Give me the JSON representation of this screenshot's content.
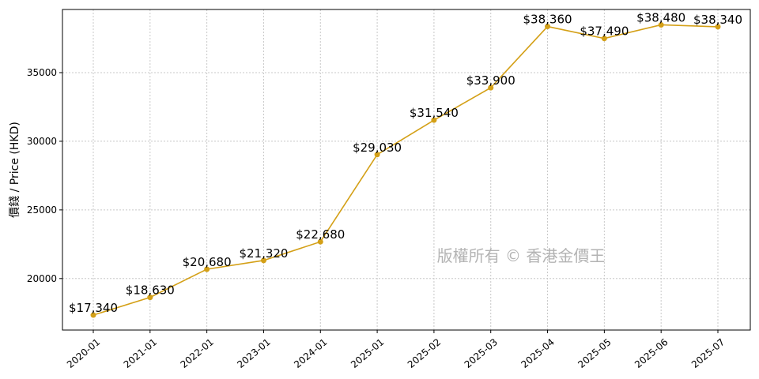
{
  "chart_data": {
    "type": "line",
    "title": "",
    "xlabel": "",
    "ylabel": "價錢 / Price (HKD)",
    "x": [
      "2020-01",
      "2021-01",
      "2022-01",
      "2023-01",
      "2024-01",
      "2025-01",
      "2025-02",
      "2025-03",
      "2025-04",
      "2025-05",
      "2025-06",
      "2025-07"
    ],
    "series": [
      {
        "values": [
          17340,
          18630,
          20680,
          21320,
          22680,
          29030,
          31540,
          33900,
          38360,
          37490,
          38480,
          38340
        ],
        "labels": [
          "$17,340",
          "$18,630",
          "$20,680",
          "$21,320",
          "$22,680",
          "$29,030",
          "$31,540",
          "$33,900",
          "$38,360",
          "$37,490",
          "$38,480",
          "$38,340"
        ],
        "color": "#d4a017"
      }
    ],
    "yticks": [
      20000,
      25000,
      30000,
      35000
    ],
    "ylim": [
      16250,
      39600
    ],
    "grid": true,
    "watermark": "版權所有 © 香港金價王"
  }
}
